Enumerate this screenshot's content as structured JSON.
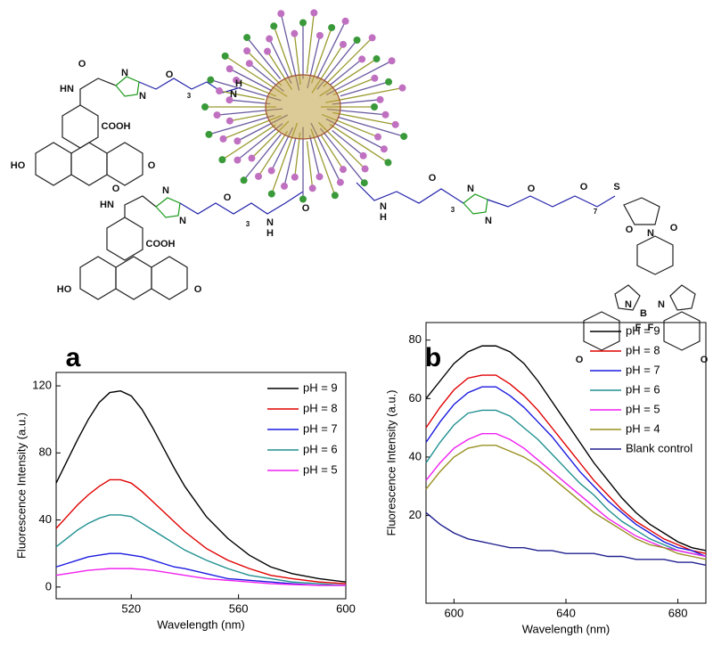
{
  "diagram": {
    "labels": [
      "COOH",
      "HO",
      "O",
      "N",
      "H",
      "3",
      "S",
      "B",
      "F",
      "7",
      "HN"
    ]
  },
  "chart_data": [
    {
      "type": "line",
      "panel": "a",
      "xlabel": "Wavelength (nm)",
      "ylabel": "Fluorescence Intensity (a.u.)",
      "x": [
        492,
        496,
        500,
        504,
        508,
        512,
        516,
        520,
        524,
        528,
        532,
        536,
        540,
        548,
        556,
        564,
        572,
        580,
        590,
        600
      ],
      "xlim": [
        492,
        600
      ],
      "xticks": [
        520,
        560,
        600
      ],
      "ylim": [
        -7,
        128
      ],
      "yticks": [
        0,
        40,
        80,
        120
      ],
      "legend": "upper right",
      "series": [
        {
          "name": "pH = 9",
          "color": "#000000",
          "values": [
            62,
            75,
            88,
            100,
            110,
            116,
            117,
            114,
            106,
            95,
            83,
            71,
            60,
            42,
            29,
            19,
            12,
            8,
            5,
            3
          ]
        },
        {
          "name": "pH = 8",
          "color": "#e00000",
          "values": [
            35,
            42,
            49,
            55,
            60,
            64,
            64,
            62,
            57,
            51,
            45,
            39,
            33,
            23,
            16,
            11,
            7,
            5,
            3,
            2
          ]
        },
        {
          "name": "pH = 7",
          "color": "#1a1ae0",
          "values": [
            12,
            14,
            16,
            18,
            19,
            20,
            20,
            19,
            18,
            16,
            14,
            12,
            11,
            8,
            5,
            4,
            3,
            2,
            1,
            1
          ]
        },
        {
          "name": "pH = 6",
          "color": "#209090",
          "values": [
            24,
            29,
            34,
            38,
            41,
            43,
            43,
            42,
            38,
            34,
            30,
            26,
            22,
            16,
            11,
            7,
            5,
            3,
            2,
            1
          ]
        },
        {
          "name": "pH = 5",
          "color": "#f020f0",
          "values": [
            7,
            8,
            9,
            10,
            10.5,
            11,
            11,
            11,
            10.5,
            10,
            9,
            8,
            7,
            5,
            4,
            3,
            2,
            1.5,
            1,
            1
          ]
        }
      ]
    },
    {
      "type": "line",
      "panel": "b",
      "xlabel": "Wavelength (nm)",
      "ylabel": "Fluorescence Intensity (a.u.)",
      "x": [
        590,
        595,
        600,
        605,
        610,
        615,
        620,
        625,
        630,
        635,
        640,
        645,
        650,
        655,
        660,
        665,
        670,
        675,
        680,
        685,
        690
      ],
      "xlim": [
        590,
        690
      ],
      "xticks": [
        600,
        640,
        680
      ],
      "ylim": [
        -10,
        86
      ],
      "yticks": [
        20,
        40,
        60,
        80
      ],
      "legend": "upper right",
      "series": [
        {
          "name": "pH = 9",
          "color": "#000000",
          "values": [
            60,
            66,
            72,
            76,
            78,
            78,
            76,
            72,
            66,
            59,
            52,
            45,
            38,
            32,
            26,
            21,
            17,
            14,
            11,
            9,
            8
          ]
        },
        {
          "name": "pH = 8",
          "color": "#e00000",
          "values": [
            50,
            57,
            63,
            67,
            68,
            68,
            65,
            61,
            56,
            50,
            44,
            38,
            32,
            27,
            22,
            18,
            15,
            12,
            10,
            8,
            7
          ]
        },
        {
          "name": "pH = 7",
          "color": "#1a1ae0",
          "values": [
            45,
            52,
            58,
            62,
            64,
            64,
            61,
            57,
            52,
            47,
            41,
            35,
            30,
            25,
            21,
            17,
            14,
            11,
            9,
            8,
            6
          ]
        },
        {
          "name": "pH = 6",
          "color": "#209090",
          "values": [
            38,
            45,
            51,
            55,
            56,
            56,
            54,
            50,
            46,
            41,
            36,
            31,
            27,
            22,
            18,
            15,
            12,
            10,
            8,
            7,
            6
          ]
        },
        {
          "name": "pH = 5",
          "color": "#f020f0",
          "values": [
            32,
            38,
            43,
            46,
            48,
            48,
            46,
            43,
            39,
            35,
            31,
            27,
            23,
            19,
            16,
            13,
            11,
            9,
            8,
            7,
            6
          ]
        },
        {
          "name": "pH = 4",
          "color": "#999020",
          "values": [
            29,
            35,
            40,
            43,
            44,
            44,
            42,
            40,
            37,
            33,
            29,
            25,
            21,
            18,
            15,
            12,
            10,
            9,
            7,
            6,
            5
          ]
        },
        {
          "name": "Blank control",
          "color": "#202090",
          "values": [
            21,
            17,
            14,
            12,
            11,
            10,
            9,
            9,
            8,
            8,
            7,
            7,
            7,
            6,
            6,
            5,
            5,
            5,
            4,
            4,
            3
          ]
        }
      ]
    }
  ]
}
